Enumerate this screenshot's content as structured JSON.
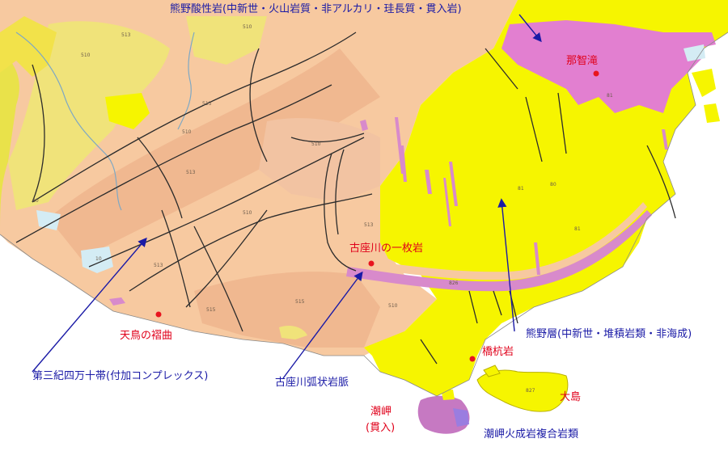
{
  "labels": {
    "kumano_acidic": "熊野酸性岩(中新世・火山岩質・非アルカリ・珪長質・貫入岩)",
    "nachi_falls": "那智滝",
    "kozagawa_ichimaiiwa": "古座川の一枚岩",
    "amadori_fold": "天鳥の褶曲",
    "kumano_group": "熊野層(中新世・堆積岩類・非海成)",
    "hashikui_iwa": "橋杭岩",
    "shimanto": "第三紀四万十帯(付加コンプレックス)",
    "kozagawa_dike": "古座川弧状岩脈",
    "oshima": "大島",
    "shionomisaki": "潮岬",
    "intrusion_note": "(貫入)",
    "shionomisaki_complex": "潮岬火成岩複合岩類"
  },
  "unit_codes": [
    "510",
    "513",
    "515",
    "80",
    "81",
    "826",
    "827",
    "10"
  ],
  "colors": {
    "label_blue": "#1a1aa6",
    "label_red": "#e0001a",
    "marker_red": "#e8141e",
    "kumano_group_yellow": "#f6f500",
    "kumano_acidic_pink": "#e27fd0",
    "shimanto_light": "#f7c9a0",
    "shimanto_dark": "#f0b890",
    "terrace_yellow": "#f0e37a",
    "coastal_yellow": "#e9e24a",
    "water_blue": "#d4ecf4",
    "fault_line": "#2b2b2b"
  }
}
